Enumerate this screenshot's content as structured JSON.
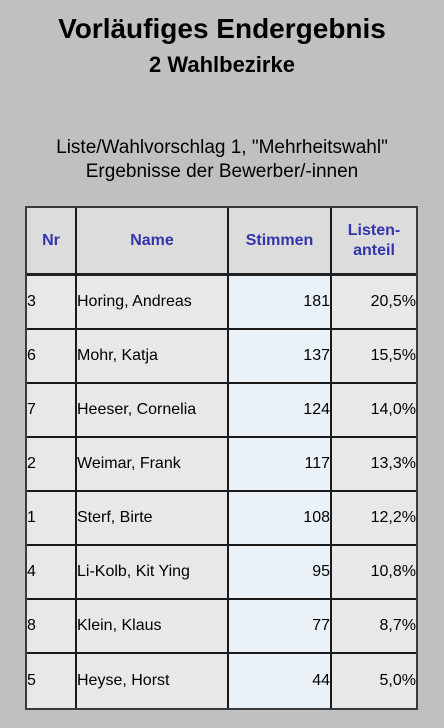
{
  "header": {
    "title": "Vorläufiges Endergebnis",
    "subtitle": "2 Wahlbezirke"
  },
  "list": {
    "title": "Liste/Wahlvorschlag 1, \"Mehrheitswahl\"",
    "subtitle": "Ergebnisse der Bewerber/-innen"
  },
  "table": {
    "columns": {
      "nr": "Nr",
      "name": "Name",
      "stimmen": "Stimmen",
      "anteil_line1": "Listen-",
      "anteil_line2": "anteil"
    },
    "rows": [
      {
        "nr": "3",
        "name": "Horing, Andreas",
        "stimmen": "181",
        "anteil": "20,5%"
      },
      {
        "nr": "6",
        "name": "Mohr, Katja",
        "stimmen": "137",
        "anteil": "15,5%"
      },
      {
        "nr": "7",
        "name": "Heeser, Cornelia",
        "stimmen": "124",
        "anteil": "14,0%"
      },
      {
        "nr": "2",
        "name": "Weimar, Frank",
        "stimmen": "117",
        "anteil": "13,3%"
      },
      {
        "nr": "1",
        "name": "Sterf, Birte",
        "stimmen": "108",
        "anteil": "12,2%"
      },
      {
        "nr": "4",
        "name": "Li-Kolb, Kit Ying",
        "stimmen": "95",
        "anteil": "10,8%"
      },
      {
        "nr": "8",
        "name": "Klein, Klaus",
        "stimmen": "77",
        "anteil": "8,7%"
      },
      {
        "nr": "5",
        "name": "Heyse, Horst",
        "stimmen": "44",
        "anteil": "5,0%"
      }
    ]
  },
  "colors": {
    "background": "#c0c0c0",
    "header_text": "#3333aa",
    "stimmen_cell": "#eaf2f8"
  }
}
